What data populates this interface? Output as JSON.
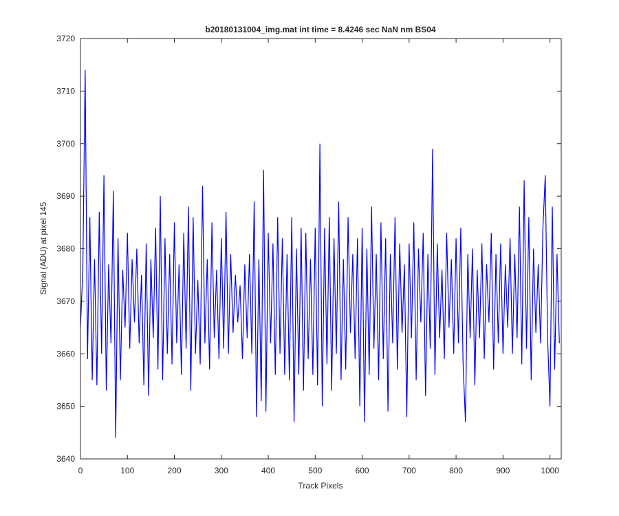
{
  "chart_data": {
    "type": "line",
    "title": "b20180131004_img.mat int time = 8.4246 sec  NaN nm BS04",
    "x_label": "Track Pixels",
    "y_label": "Signal (ADU) at pixel 145",
    "xlim": [
      0,
      1024
    ],
    "ylim": [
      3640,
      3720
    ],
    "xticks": [
      0,
      100,
      200,
      300,
      400,
      500,
      600,
      700,
      800,
      900,
      1000
    ],
    "yticks": [
      3640,
      3650,
      3660,
      3670,
      3680,
      3690,
      3700,
      3710,
      3720
    ],
    "x": [
      0,
      5,
      10,
      15,
      20,
      25,
      30,
      35,
      40,
      45,
      50,
      55,
      60,
      65,
      70,
      75,
      80,
      85,
      90,
      95,
      100,
      105,
      110,
      115,
      120,
      125,
      130,
      135,
      140,
      145,
      150,
      155,
      160,
      165,
      170,
      175,
      180,
      185,
      190,
      195,
      200,
      205,
      210,
      215,
      220,
      225,
      230,
      235,
      240,
      245,
      250,
      255,
      260,
      265,
      270,
      275,
      280,
      285,
      290,
      295,
      300,
      305,
      310,
      315,
      320,
      325,
      330,
      335,
      340,
      345,
      350,
      355,
      360,
      365,
      370,
      375,
      380,
      385,
      390,
      395,
      400,
      405,
      410,
      415,
      420,
      425,
      430,
      435,
      440,
      445,
      450,
      455,
      460,
      465,
      470,
      475,
      480,
      485,
      490,
      495,
      500,
      505,
      510,
      515,
      520,
      525,
      530,
      535,
      540,
      545,
      550,
      555,
      560,
      565,
      570,
      575,
      580,
      585,
      590,
      595,
      600,
      605,
      610,
      615,
      620,
      625,
      630,
      635,
      640,
      645,
      650,
      655,
      660,
      665,
      670,
      675,
      680,
      685,
      690,
      695,
      700,
      705,
      710,
      715,
      720,
      725,
      730,
      735,
      740,
      745,
      750,
      755,
      760,
      765,
      770,
      775,
      780,
      785,
      790,
      795,
      800,
      805,
      810,
      815,
      820,
      825,
      830,
      835,
      840,
      845,
      850,
      855,
      860,
      865,
      870,
      875,
      880,
      885,
      890,
      895,
      900,
      905,
      910,
      915,
      920,
      925,
      930,
      935,
      940,
      945,
      950,
      955,
      960,
      965,
      970,
      975,
      980,
      985,
      990,
      995,
      1000,
      1005,
      1010,
      1015,
      1020
    ],
    "series": [
      {
        "name": "signal",
        "color": "#0000ff",
        "values": [
          3665,
          3676,
          3714,
          3659,
          3686,
          3655,
          3678,
          3654,
          3687,
          3660,
          3694,
          3653,
          3677,
          3662,
          3691,
          3644,
          3682,
          3655,
          3676,
          3665,
          3683,
          3661,
          3678,
          3666,
          3680,
          3662,
          3675,
          3654,
          3681,
          3652,
          3678,
          3663,
          3684,
          3657,
          3690,
          3655,
          3682,
          3660,
          3679,
          3658,
          3685,
          3662,
          3677,
          3656,
          3683,
          3661,
          3688,
          3653,
          3686,
          3660,
          3674,
          3658,
          3692,
          3662,
          3678,
          3657,
          3685,
          3663,
          3676,
          3659,
          3682,
          3661,
          3687,
          3660,
          3679,
          3664,
          3675,
          3666,
          3673,
          3659,
          3677,
          3663,
          3679,
          3660,
          3689,
          3648,
          3678,
          3651,
          3695,
          3649,
          3683,
          3662,
          3681,
          3656,
          3686,
          3660,
          3682,
          3656,
          3679,
          3655,
          3686,
          3647,
          3680,
          3656,
          3684,
          3653,
          3683,
          3659,
          3678,
          3656,
          3684,
          3654,
          3700,
          3650,
          3684,
          3658,
          3686,
          3653,
          3682,
          3660,
          3689,
          3655,
          3678,
          3657,
          3686,
          3664,
          3679,
          3659,
          3682,
          3650,
          3684,
          3647,
          3680,
          3656,
          3688,
          3661,
          3679,
          3655,
          3685,
          3659,
          3682,
          3649,
          3679,
          3662,
          3686,
          3657,
          3681,
          3664,
          3677,
          3648,
          3681,
          3663,
          3685,
          3655,
          3680,
          3666,
          3683,
          3652,
          3679,
          3661,
          3699,
          3656,
          3681,
          3663,
          3676,
          3659,
          3683,
          3665,
          3678,
          3660,
          3682,
          3662,
          3684,
          3658,
          3647,
          3679,
          3663,
          3680,
          3654,
          3676,
          3663,
          3681,
          3659,
          3677,
          3666,
          3683,
          3657,
          3679,
          3662,
          3681,
          3660,
          3677,
          3665,
          3682,
          3660,
          3679,
          3663,
          3688,
          3658,
          3693,
          3661,
          3686,
          3655,
          3680,
          3664,
          3677,
          3662,
          3684,
          3694,
          3663,
          3650,
          3688,
          3657,
          3679,
          3662
        ]
      }
    ]
  }
}
